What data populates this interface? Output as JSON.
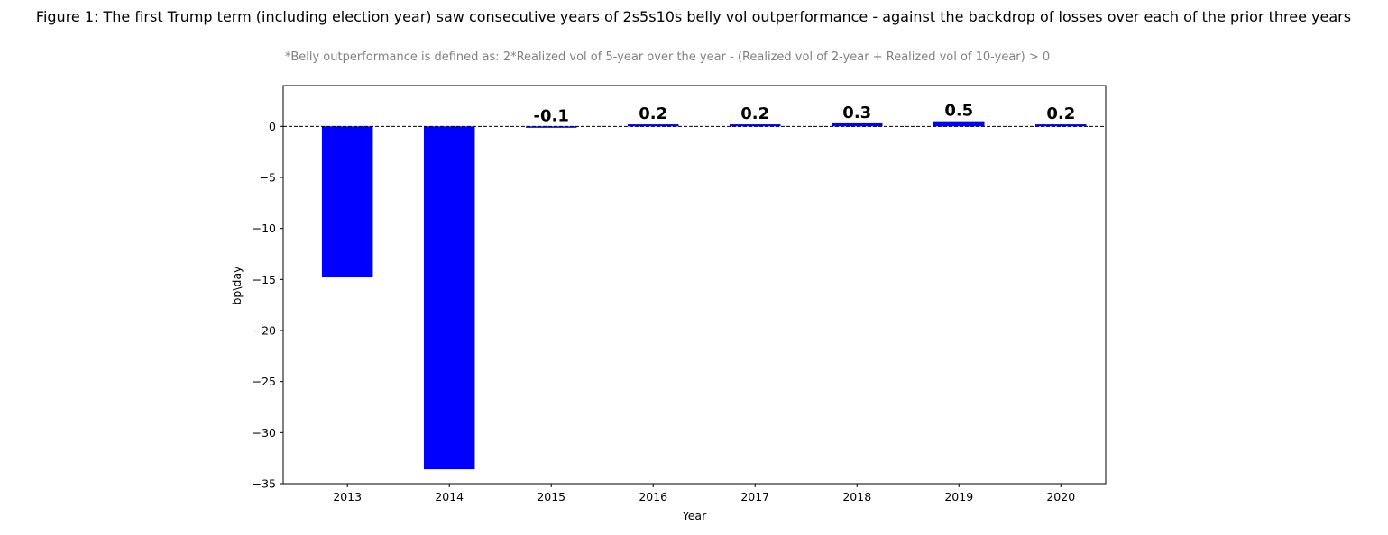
{
  "chart_data": {
    "type": "bar",
    "title": "Figure 1: The first Trump term (including election year) saw consecutive years of 2s5s10s belly vol outperformance  - against the backdrop of losses over each of the prior three years",
    "subtitle": "*Belly outperformance is defined as: 2*Realized vol of 5-year over the year - (Realized vol of 2-year + Realized vol of 10-year) > 0",
    "xlabel": "Year",
    "ylabel": "bp\\day",
    "categories": [
      "2013",
      "2014",
      "2015",
      "2016",
      "2017",
      "2018",
      "2019",
      "2020"
    ],
    "values": [
      -14.8,
      -33.6,
      -0.1,
      0.2,
      0.2,
      0.3,
      0.5,
      0.2
    ],
    "data_labels": [
      {
        "index": 2,
        "text": "-0.1"
      },
      {
        "index": 3,
        "text": "0.2"
      },
      {
        "index": 4,
        "text": "0.2"
      },
      {
        "index": 5,
        "text": "0.3"
      },
      {
        "index": 6,
        "text": "0.5"
      },
      {
        "index": 7,
        "text": "0.2"
      }
    ],
    "ylim": [
      -35,
      4
    ],
    "yticks": [
      0,
      -5,
      -10,
      -15,
      -20,
      -25,
      -30,
      -35
    ],
    "ytick_labels": [
      "0",
      "−5",
      "−10",
      "−15",
      "−20",
      "−25",
      "−30",
      "−35"
    ],
    "zero_line": {
      "y": 0,
      "style": "dashed",
      "color": "#000000"
    },
    "bar_color": "#0000ff",
    "grid": false,
    "legend": "none"
  }
}
